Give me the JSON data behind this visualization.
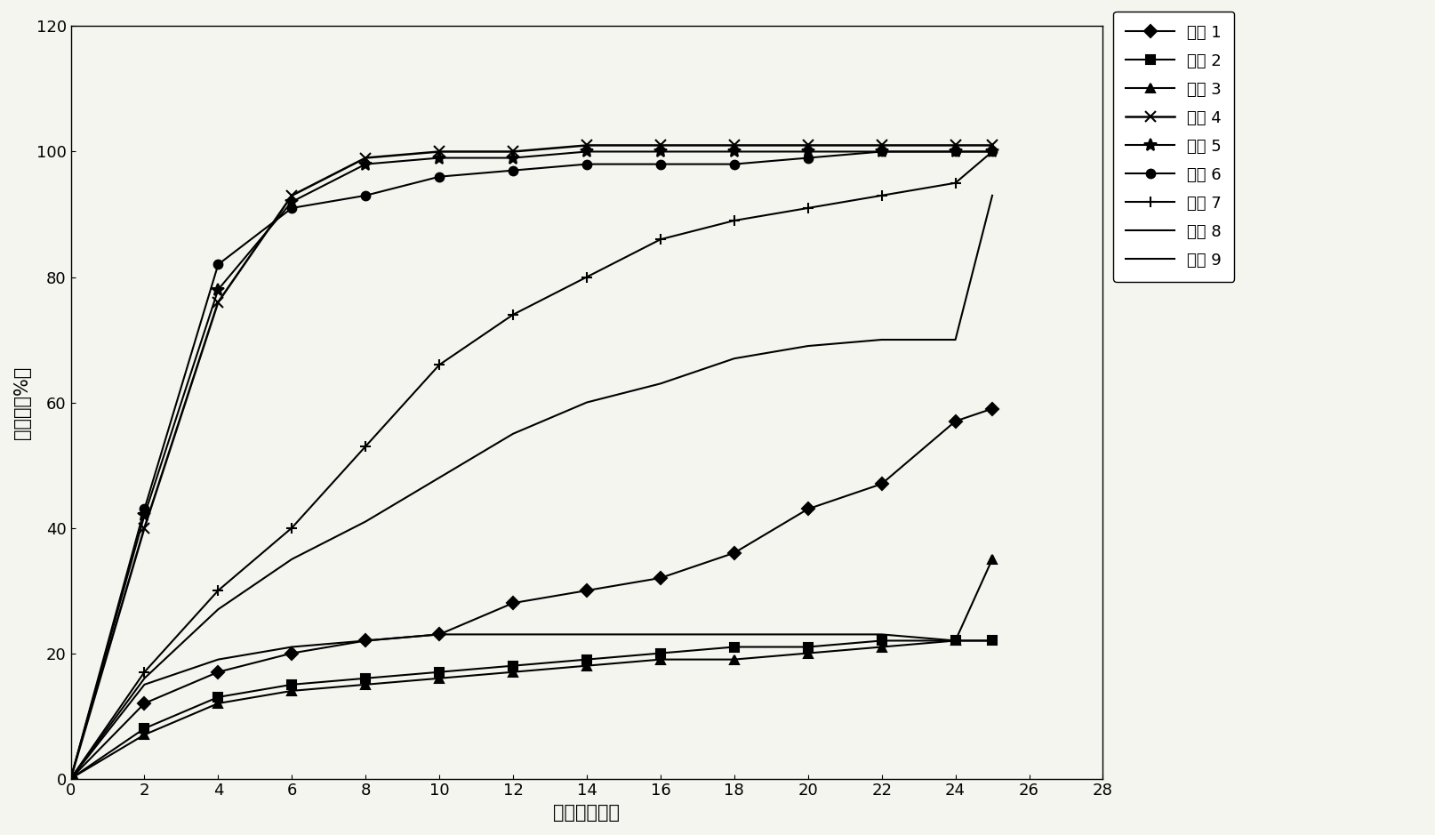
{
  "title": "",
  "xlabel": "时间（小时）",
  "ylabel": "释放度（%）",
  "xlim": [
    0,
    28
  ],
  "ylim": [
    0,
    120
  ],
  "xticks": [
    0,
    2,
    4,
    6,
    8,
    10,
    12,
    14,
    16,
    18,
    20,
    22,
    24,
    26,
    28
  ],
  "yticks": [
    0,
    20,
    40,
    60,
    80,
    100,
    120
  ],
  "background_color": "#f5f5f0",
  "series": [
    {
      "name": "组方 1",
      "marker": "D",
      "linestyle": "-",
      "color": "#000000",
      "linewidth": 1.5,
      "markersize": 7,
      "markevery": 1,
      "x": [
        0,
        2,
        4,
        6,
        8,
        10,
        12,
        14,
        16,
        18,
        20,
        22,
        24,
        25
      ],
      "y": [
        0,
        12,
        17,
        20,
        22,
        23,
        28,
        30,
        32,
        36,
        43,
        47,
        57,
        59
      ]
    },
    {
      "name": "组方 2",
      "marker": "s",
      "linestyle": "-",
      "color": "#000000",
      "linewidth": 1.5,
      "markersize": 7,
      "markevery": 1,
      "x": [
        0,
        2,
        4,
        6,
        8,
        10,
        12,
        14,
        16,
        18,
        20,
        22,
        24,
        25
      ],
      "y": [
        0,
        8,
        13,
        15,
        16,
        17,
        18,
        19,
        20,
        21,
        21,
        22,
        22,
        22
      ]
    },
    {
      "name": "组方 3",
      "marker": "^",
      "linestyle": "-",
      "color": "#000000",
      "linewidth": 1.5,
      "markersize": 7,
      "markevery": 1,
      "x": [
        0,
        2,
        4,
        6,
        8,
        10,
        12,
        14,
        16,
        18,
        20,
        22,
        24,
        25
      ],
      "y": [
        0,
        7,
        12,
        14,
        15,
        16,
        17,
        18,
        19,
        19,
        20,
        21,
        22,
        35
      ]
    },
    {
      "name": "组方 4",
      "marker": "x",
      "linestyle": "-",
      "color": "#000000",
      "linewidth": 1.8,
      "markersize": 9,
      "markevery": 1,
      "x": [
        0,
        2,
        4,
        6,
        8,
        10,
        12,
        14,
        16,
        18,
        20,
        22,
        24,
        25
      ],
      "y": [
        0,
        40,
        76,
        93,
        99,
        100,
        100,
        101,
        101,
        101,
        101,
        101,
        101,
        101
      ]
    },
    {
      "name": "组方 5",
      "marker": "*",
      "linestyle": "-",
      "color": "#000000",
      "linewidth": 1.5,
      "markersize": 10,
      "markevery": 1,
      "x": [
        0,
        2,
        4,
        6,
        8,
        10,
        12,
        14,
        16,
        18,
        20,
        22,
        24,
        25
      ],
      "y": [
        0,
        42,
        78,
        92,
        98,
        99,
        99,
        100,
        100,
        100,
        100,
        100,
        100,
        100
      ]
    },
    {
      "name": "组方 6",
      "marker": "o",
      "linestyle": "-",
      "color": "#000000",
      "linewidth": 1.5,
      "markersize": 7,
      "markevery": 1,
      "x": [
        0,
        2,
        4,
        6,
        8,
        10,
        12,
        14,
        16,
        18,
        20,
        22,
        24,
        25
      ],
      "y": [
        0,
        43,
        82,
        91,
        93,
        96,
        97,
        98,
        98,
        98,
        99,
        100,
        100,
        100
      ]
    },
    {
      "name": "组方 7",
      "marker": "+",
      "linestyle": "-",
      "color": "#000000",
      "linewidth": 1.5,
      "markersize": 9,
      "markevery": 1,
      "x": [
        0,
        2,
        4,
        6,
        8,
        10,
        12,
        14,
        16,
        18,
        20,
        22,
        24,
        25
      ],
      "y": [
        0,
        17,
        30,
        40,
        53,
        66,
        74,
        80,
        86,
        89,
        91,
        93,
        95,
        100
      ]
    },
    {
      "name": "组方 8",
      "marker": "None",
      "linestyle": "-",
      "color": "#000000",
      "linewidth": 1.5,
      "markersize": 0,
      "markevery": 1,
      "x": [
        0,
        2,
        4,
        6,
        8,
        10,
        12,
        14,
        16,
        18,
        20,
        22,
        24,
        25
      ],
      "y": [
        0,
        16,
        27,
        35,
        41,
        48,
        55,
        60,
        63,
        67,
        69,
        70,
        70,
        93
      ]
    },
    {
      "name": "组方 9",
      "marker": "None",
      "linestyle": "-",
      "color": "#000000",
      "linewidth": 1.5,
      "markersize": 0,
      "markevery": 1,
      "x": [
        0,
        2,
        4,
        6,
        8,
        10,
        12,
        14,
        16,
        18,
        20,
        22,
        24,
        25
      ],
      "y": [
        0,
        15,
        19,
        21,
        22,
        23,
        23,
        23,
        23,
        23,
        23,
        23,
        22,
        22
      ]
    }
  ],
  "legend_labels": [
    "组方 1",
    "组方 2",
    "组方 3",
    "组方 4",
    "组方 5",
    "组方 6",
    "组方 7",
    "组方 8",
    "组方 9"
  ],
  "font_size_axis_label": 15,
  "font_size_tick": 13,
  "font_size_legend": 13
}
